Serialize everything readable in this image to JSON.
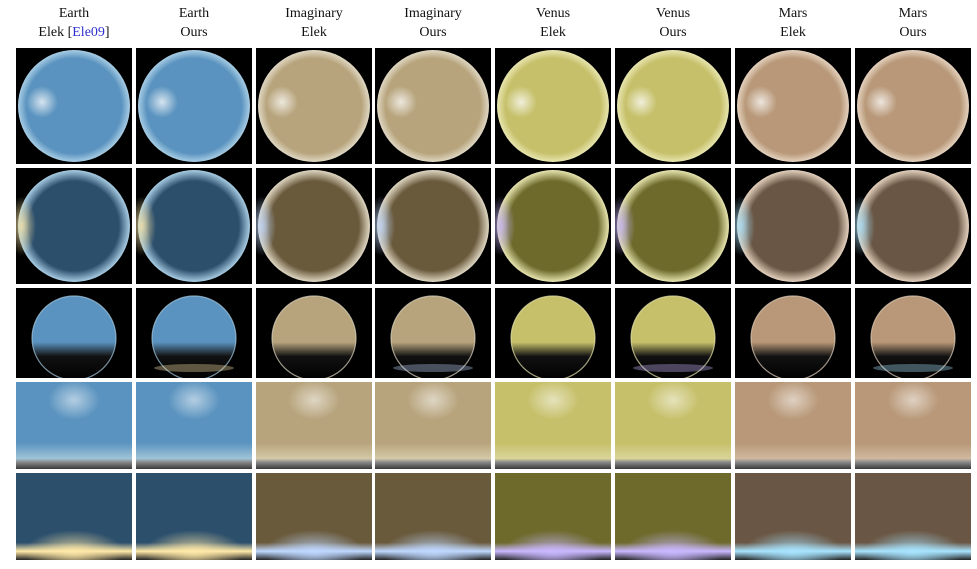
{
  "headers": [
    {
      "planet": "Earth",
      "method_prefix": "Elek [",
      "citation": "Ele09",
      "method_suffix": "]"
    },
    {
      "planet": "Earth",
      "method": "Ours"
    },
    {
      "planet": "Imaginary",
      "method": "Elek"
    },
    {
      "planet": "Imaginary",
      "method": "Ours"
    },
    {
      "planet": "Venus",
      "method": "Elek"
    },
    {
      "planet": "Venus",
      "method": "Ours"
    },
    {
      "planet": "Mars",
      "method": "Elek"
    },
    {
      "planet": "Mars",
      "method": "Ours"
    }
  ],
  "colors": {
    "earth": {
      "sky": "#5a93bf",
      "deep": "#2c4f6c",
      "rim": "#a8cde4",
      "glow": "#ffe9a8",
      "horizon": "#9fc4d8"
    },
    "imaginary": {
      "sky": "#b7a47c",
      "deep": "#6a5a3c",
      "rim": "#e0d8c4",
      "glow": "#bfd8ff",
      "horizon": "#d4c9a8"
    },
    "venus": {
      "sky": "#c6c06a",
      "deep": "#6e6a2c",
      "rim": "#e8e6b0",
      "glow": "#c9b8ff",
      "horizon": "#d9d59a"
    },
    "mars": {
      "sky": "#b89878",
      "deep": "#6a5644",
      "rim": "#e4d2bf",
      "glow": "#a8e4ff",
      "horizon": "#cfb9a0"
    }
  },
  "column_planets": [
    "earth",
    "earth",
    "imaginary",
    "imaginary",
    "venus",
    "venus",
    "mars",
    "mars"
  ],
  "row_types": [
    "sphere_day",
    "sphere_dusk",
    "dome_horizon",
    "panorama_day",
    "panorama_sunset"
  ]
}
